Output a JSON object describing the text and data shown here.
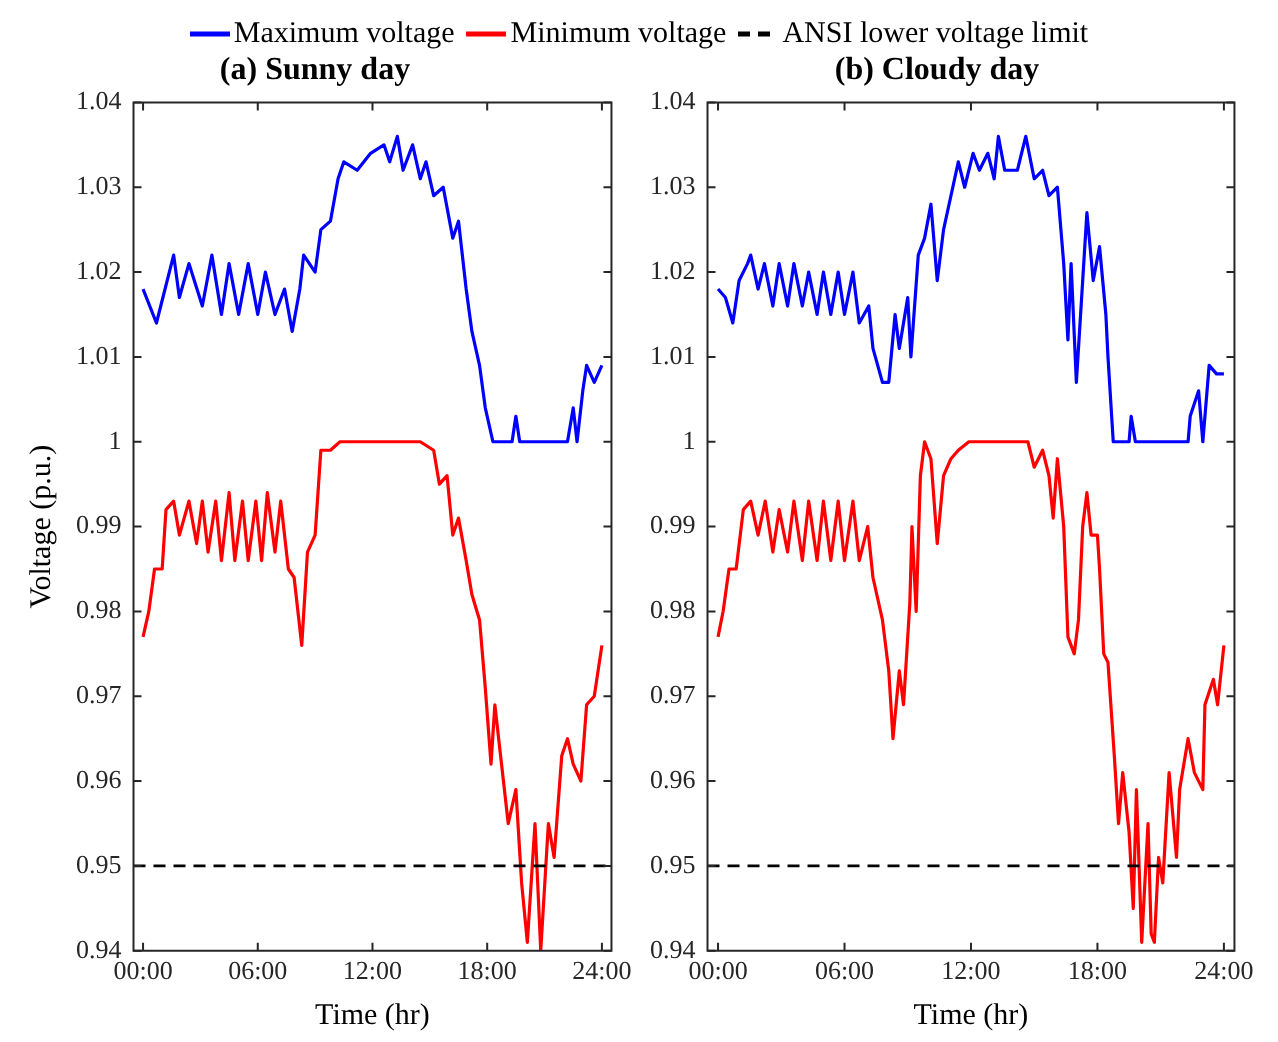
{
  "chart_data": [
    {
      "type": "line",
      "title": "(a) Sunny day",
      "xlabel": "Time (hr)",
      "ylabel": "Voltage (p.u.)",
      "xlim": [
        -0.5,
        24.5
      ],
      "ylim": [
        0.94,
        1.04
      ],
      "xticks": [
        {
          "value": 0,
          "label": "00:00"
        },
        {
          "value": 6,
          "label": "06:00"
        },
        {
          "value": 12,
          "label": "12:00"
        },
        {
          "value": 18,
          "label": "18:00"
        },
        {
          "value": 24,
          "label": "24:00"
        }
      ],
      "yticks": [
        0.94,
        0.95,
        0.96,
        0.97,
        0.98,
        0.99,
        {
          "value": 1,
          "label": "1"
        },
        1.01,
        1.02,
        1.03,
        1.04
      ],
      "grid": false,
      "legend": "top",
      "marker": "none",
      "line_style": "solid",
      "series": [
        {
          "name": "Maximum voltage",
          "color": "#0000ff",
          "x": [
            0,
            0.7,
            1.6,
            1.9,
            2.4,
            3.1,
            3.6,
            4.1,
            4.5,
            5.0,
            5.5,
            6.0,
            6.4,
            6.9,
            7.4,
            7.8,
            8.2,
            8.4,
            9.0,
            9.3,
            9.8,
            10.2,
            10.5,
            11.2,
            11.9,
            12.6,
            12.9,
            13.3,
            13.6,
            14.1,
            14.5,
            14.8,
            15.2,
            15.7,
            16.2,
            16.5,
            16.9,
            17.2,
            17.6,
            17.9,
            18.3,
            19.3,
            19.5,
            19.7,
            22.2,
            22.5,
            22.7,
            23.0,
            23.2,
            23.6,
            24.0
          ],
          "values": [
            1.018,
            1.014,
            1.022,
            1.017,
            1.021,
            1.016,
            1.022,
            1.015,
            1.021,
            1.015,
            1.021,
            1.015,
            1.02,
            1.015,
            1.018,
            1.013,
            1.018,
            1.022,
            1.02,
            1.025,
            1.026,
            1.031,
            1.033,
            1.032,
            1.034,
            1.035,
            1.033,
            1.036,
            1.032,
            1.035,
            1.031,
            1.033,
            1.029,
            1.03,
            1.024,
            1.026,
            1.018,
            1.013,
            1.009,
            1.004,
            1.0,
            1.0,
            1.003,
            1.0,
            1.0,
            1.004,
            1.0,
            1.006,
            1.009,
            1.007,
            1.009
          ]
        },
        {
          "name": "Minimum voltage",
          "color": "#ff0000",
          "x": [
            0,
            0.3,
            0.6,
            1.0,
            1.2,
            1.6,
            1.9,
            2.4,
            2.8,
            3.1,
            3.4,
            3.8,
            4.1,
            4.5,
            4.8,
            5.2,
            5.5,
            5.9,
            6.2,
            6.5,
            6.9,
            7.2,
            7.6,
            7.9,
            8.3,
            8.6,
            9.0,
            9.3,
            9.8,
            10.3,
            14.5,
            15.2,
            15.5,
            15.9,
            16.2,
            16.5,
            16.9,
            17.2,
            17.6,
            17.9,
            18.2,
            18.4,
            18.8,
            19.1,
            19.5,
            19.8,
            20.1,
            20.5,
            20.8,
            21.2,
            21.5,
            21.9,
            22.2,
            22.5,
            22.9,
            23.2,
            23.6,
            24.0
          ],
          "values": [
            0.977,
            0.98,
            0.985,
            0.985,
            0.992,
            0.993,
            0.989,
            0.993,
            0.988,
            0.993,
            0.987,
            0.993,
            0.986,
            0.994,
            0.986,
            0.993,
            0.986,
            0.993,
            0.986,
            0.994,
            0.987,
            0.993,
            0.985,
            0.984,
            0.976,
            0.987,
            0.989,
            0.999,
            0.999,
            1.0,
            1.0,
            0.999,
            0.995,
            0.996,
            0.989,
            0.991,
            0.986,
            0.982,
            0.979,
            0.971,
            0.962,
            0.969,
            0.961,
            0.955,
            0.959,
            0.948,
            0.941,
            0.955,
            0.94,
            0.955,
            0.951,
            0.963,
            0.965,
            0.962,
            0.96,
            0.969,
            0.97,
            0.976
          ]
        }
      ],
      "ref_lines": [
        {
          "axis": "y",
          "value": 0.95,
          "label": "ANSI lower voltage limit",
          "color": "#000000",
          "line_style": "dashed"
        }
      ]
    },
    {
      "type": "line",
      "title": "(b) Cloudy day",
      "xlabel": "Time (hr)",
      "xlim": [
        -0.5,
        24.5
      ],
      "ylim": [
        0.94,
        1.04
      ],
      "xticks": [
        {
          "value": 0,
          "label": "00:00"
        },
        {
          "value": 6,
          "label": "06:00"
        },
        {
          "value": 12,
          "label": "12:00"
        },
        {
          "value": 18,
          "label": "18:00"
        },
        {
          "value": 24,
          "label": "24:00"
        }
      ],
      "yticks": [
        0.94,
        0.95,
        0.96,
        0.97,
        0.98,
        0.99,
        {
          "value": 1,
          "label": "1"
        },
        1.01,
        1.02,
        1.03,
        1.04
      ],
      "grid": false,
      "marker": "none",
      "line_style": "solid",
      "series": [
        {
          "color": "#0000ff",
          "x": [
            0,
            0.35,
            0.7,
            1.0,
            1.4,
            1.55,
            1.9,
            2.2,
            2.6,
            2.9,
            3.3,
            3.6,
            4.0,
            4.3,
            4.7,
            5.0,
            5.35,
            5.7,
            6.0,
            6.4,
            6.7,
            7.15,
            7.35,
            7.8,
            8.1,
            8.4,
            8.6,
            9.0,
            9.15,
            9.5,
            9.8,
            10.1,
            10.4,
            10.7,
            11.05,
            11.4,
            11.7,
            12.1,
            12.4,
            12.8,
            13.1,
            13.3,
            13.6,
            14.2,
            14.6,
            15.0,
            15.4,
            15.7,
            16.1,
            16.4,
            16.6,
            16.75,
            17.0,
            17.3,
            17.5,
            17.8,
            18.1,
            18.4,
            18.5,
            18.75,
            19.5,
            19.6,
            19.8,
            22.3,
            22.4,
            22.8,
            23.0,
            23.3,
            23.65,
            24.0
          ],
          "values": [
            1.018,
            1.017,
            1.014,
            1.019,
            1.021,
            1.022,
            1.018,
            1.021,
            1.016,
            1.021,
            1.016,
            1.021,
            1.016,
            1.02,
            1.015,
            1.02,
            1.015,
            1.02,
            1.015,
            1.02,
            1.014,
            1.016,
            1.011,
            1.007,
            1.007,
            1.015,
            1.011,
            1.017,
            1.01,
            1.022,
            1.024,
            1.028,
            1.019,
            1.025,
            1.029,
            1.033,
            1.03,
            1.034,
            1.032,
            1.034,
            1.031,
            1.036,
            1.032,
            1.032,
            1.036,
            1.031,
            1.032,
            1.029,
            1.03,
            1.021,
            1.012,
            1.021,
            1.007,
            1.019,
            1.027,
            1.019,
            1.023,
            1.015,
            1.01,
            1.0,
            1.0,
            1.003,
            1.0,
            1.0,
            1.003,
            1.006,
            1.0,
            1.009,
            1.008,
            1.008
          ]
        },
        {
          "color": "#ff0000",
          "x": [
            0,
            0.24,
            0.52,
            0.86,
            1.2,
            1.55,
            1.9,
            2.24,
            2.6,
            2.9,
            3.3,
            3.6,
            4.0,
            4.3,
            4.7,
            5.0,
            5.35,
            5.7,
            6.0,
            6.4,
            6.7,
            7.1,
            7.35,
            7.8,
            8.1,
            8.3,
            8.6,
            8.8,
            9.1,
            9.2,
            9.4,
            9.6,
            9.8,
            10.1,
            10.4,
            10.7,
            11.05,
            11.4,
            11.9,
            12.6,
            14.0,
            14.7,
            15.0,
            15.4,
            15.7,
            15.9,
            16.1,
            16.4,
            16.6,
            16.9,
            17.1,
            17.3,
            17.5,
            17.7,
            18.0,
            18.1,
            18.3,
            18.5,
            18.8,
            19.0,
            19.2,
            19.5,
            19.7,
            19.85,
            20.1,
            20.4,
            20.55,
            20.7,
            20.9,
            21.1,
            21.4,
            21.75,
            21.9,
            22.3,
            22.6,
            23.0,
            23.1,
            23.5,
            23.7,
            24.0
          ],
          "values": [
            0.977,
            0.98,
            0.985,
            0.985,
            0.992,
            0.993,
            0.989,
            0.993,
            0.987,
            0.992,
            0.987,
            0.993,
            0.986,
            0.993,
            0.986,
            0.993,
            0.986,
            0.993,
            0.986,
            0.993,
            0.986,
            0.99,
            0.984,
            0.979,
            0.973,
            0.965,
            0.973,
            0.969,
            0.981,
            0.99,
            0.98,
            0.996,
            1.0,
            0.998,
            0.988,
            0.996,
            0.998,
            0.999,
            1.0,
            1.0,
            1.0,
            1.0,
            0.997,
            0.999,
            0.996,
            0.991,
            0.998,
            0.99,
            0.977,
            0.975,
            0.979,
            0.99,
            0.994,
            0.989,
            0.989,
            0.985,
            0.975,
            0.974,
            0.963,
            0.955,
            0.961,
            0.954,
            0.945,
            0.959,
            0.941,
            0.955,
            0.942,
            0.941,
            0.951,
            0.948,
            0.961,
            0.951,
            0.959,
            0.965,
            0.961,
            0.959,
            0.969,
            0.972,
            0.969,
            0.976
          ]
        }
      ],
      "ref_lines": [
        {
          "axis": "y",
          "value": 0.95,
          "color": "#000000",
          "line_style": "dashed"
        }
      ]
    }
  ]
}
